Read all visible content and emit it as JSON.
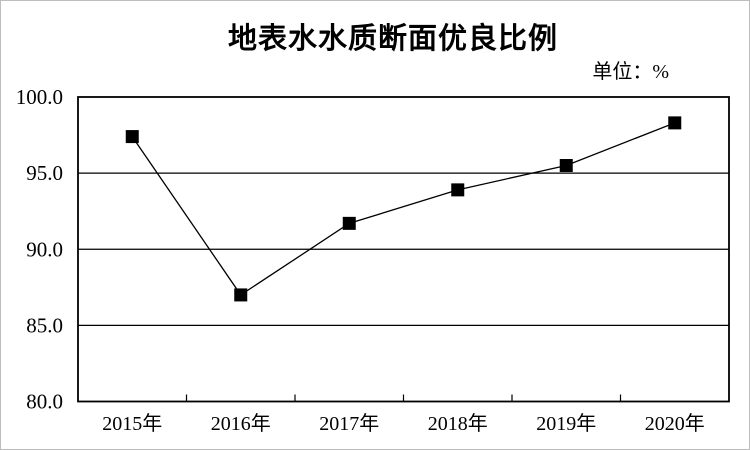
{
  "title": "地表水水质断面优良比例",
  "unit_label": "单位：%",
  "chart_data": {
    "type": "line",
    "title": "地表水水质断面优良比例",
    "unit": "单位：%",
    "categories": [
      "2015年",
      "2016年",
      "2017年",
      "2018年",
      "2019年",
      "2020年"
    ],
    "values": [
      97.4,
      87.0,
      91.7,
      93.9,
      95.5,
      98.3
    ],
    "ylim": [
      80.0,
      100.0
    ],
    "y_tick_values": [
      100.0,
      95.0,
      90.0,
      85.0,
      80.0
    ],
    "y_tick_labels": [
      "100.0",
      "95.0",
      "90.0",
      "85.0",
      "80.0"
    ],
    "grid": "horizontal-on",
    "legend_position": "none",
    "marker": "filled-square",
    "line_color": "#000000",
    "marker_color": "#000000",
    "axis_color": "#000000",
    "background_color": "#ffffff"
  }
}
